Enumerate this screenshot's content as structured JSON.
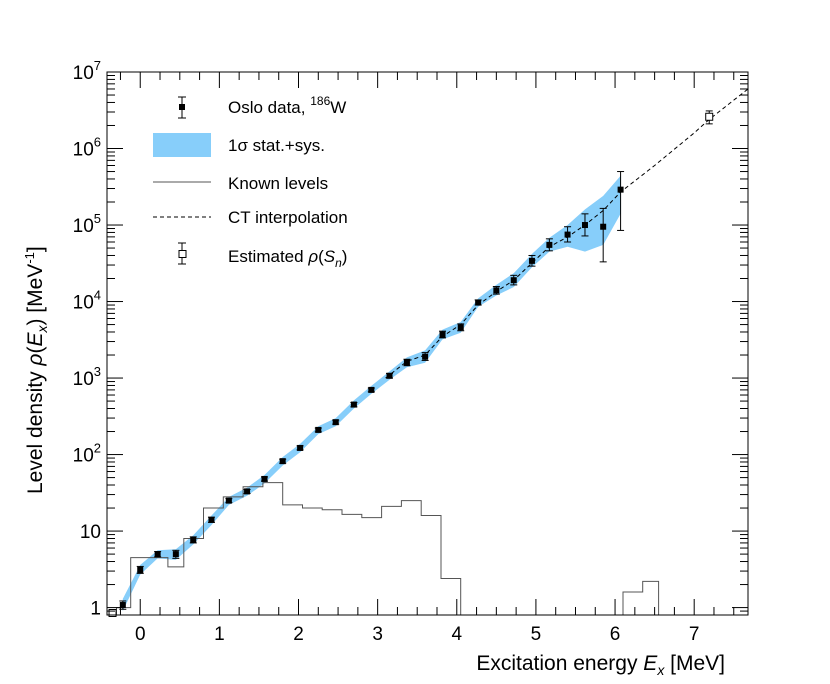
{
  "chart_data": {
    "type": "scatter",
    "xlabel": "Excitation energy E_x [MeV]",
    "xlabel_parts": {
      "pre": "Excitation energy ",
      "var": "E",
      "sub": "x",
      "post": " [MeV]"
    },
    "ylabel_parts": {
      "pre": "Level density ",
      "rho": "ρ",
      "open": "(",
      "var": "E",
      "sub": "x",
      "close": ")",
      "unit": " [MeV",
      "unit_sup": "-1",
      "unit_close": "]"
    },
    "xlim": [
      -0.42,
      7.68
    ],
    "ylim": [
      0.8,
      10000000
    ],
    "yscale": "log",
    "x_ticks": [
      "0",
      "1",
      "2",
      "3",
      "4",
      "5",
      "6",
      "7"
    ],
    "y_ticks": [
      {
        "label": "1",
        "value": 1
      },
      {
        "label": "10",
        "value": 10
      },
      {
        "label": "10",
        "sup": "2",
        "value": 100
      },
      {
        "label": "10",
        "sup": "3",
        "value": 1000
      },
      {
        "label": "10",
        "sup": "4",
        "value": 10000
      },
      {
        "label": "10",
        "sup": "5",
        "value": 100000
      },
      {
        "label": "10",
        "sup": "6",
        "value": 1000000
      },
      {
        "label": "10",
        "sup": "7",
        "value": 10000000
      }
    ],
    "legend": {
      "position": "top-left",
      "entries": [
        {
          "key": "oslo",
          "label": "Oslo data, ",
          "sup": "186",
          "tail": "W"
        },
        {
          "key": "band",
          "label": "1σ stat.+sys."
        },
        {
          "key": "known",
          "label": "Known levels"
        },
        {
          "key": "ct",
          "label": "CT interpolation"
        },
        {
          "key": "sn",
          "label": "Estimated ",
          "rho": "ρ",
          "open": "(",
          "var": "S",
          "sub": "n",
          "close": ")"
        }
      ]
    },
    "colors": {
      "band": "#87cefa",
      "markers": "#000000",
      "known_levels": "#555555",
      "interp": "#000000"
    },
    "series": [
      {
        "name": "Oslo data, 186W",
        "points": [
          {
            "x": -0.22,
            "y": 1.08,
            "lo": 0.95,
            "hi": 1.22
          },
          {
            "x": 0.0,
            "y": 3.1,
            "lo": 2.8,
            "hi": 3.45
          },
          {
            "x": 0.22,
            "y": 5.0,
            "lo": 4.6,
            "hi": 5.4
          },
          {
            "x": 0.45,
            "y": 5.0,
            "lo": 4.4,
            "hi": 5.6
          },
          {
            "x": 0.67,
            "y": 7.7,
            "lo": 7.0,
            "hi": 8.4
          },
          {
            "x": 0.9,
            "y": 14.0,
            "lo": 13.0,
            "hi": 15.2
          },
          {
            "x": 1.12,
            "y": 25.0,
            "lo": 23.5,
            "hi": 26.5
          },
          {
            "x": 1.35,
            "y": 33.0,
            "lo": 31.0,
            "hi": 35.0
          },
          {
            "x": 1.57,
            "y": 48.0,
            "lo": 45.0,
            "hi": 51.0
          },
          {
            "x": 1.8,
            "y": 82.0,
            "lo": 77.0,
            "hi": 87.0
          },
          {
            "x": 2.02,
            "y": 122.0,
            "lo": 115.0,
            "hi": 130.0
          },
          {
            "x": 2.25,
            "y": 210.0,
            "lo": 198.0,
            "hi": 222.0
          },
          {
            "x": 2.47,
            "y": 265.0,
            "lo": 250.0,
            "hi": 282.0
          },
          {
            "x": 2.7,
            "y": 450.0,
            "lo": 420.0,
            "hi": 480.0
          },
          {
            "x": 2.92,
            "y": 700.0,
            "lo": 660.0,
            "hi": 740.0
          },
          {
            "x": 3.15,
            "y": 1070.0,
            "lo": 1000.0,
            "hi": 1150.0
          },
          {
            "x": 3.37,
            "y": 1600.0,
            "lo": 1450.0,
            "hi": 1760.0
          },
          {
            "x": 3.6,
            "y": 1900.0,
            "lo": 1700.0,
            "hi": 2150.0
          },
          {
            "x": 3.82,
            "y": 3700.0,
            "lo": 3350.0,
            "hi": 4100.0
          },
          {
            "x": 4.05,
            "y": 4600.0,
            "lo": 4150.0,
            "hi": 5100.0
          },
          {
            "x": 4.27,
            "y": 9700.0,
            "lo": 9000.0,
            "hi": 10500.0
          },
          {
            "x": 4.5,
            "y": 14000.0,
            "lo": 12500.0,
            "hi": 15700.0
          },
          {
            "x": 4.72,
            "y": 19000.0,
            "lo": 16500.0,
            "hi": 22000.0
          },
          {
            "x": 4.95,
            "y": 34000.0,
            "lo": 29000.0,
            "hi": 40000.0
          },
          {
            "x": 5.17,
            "y": 55000.0,
            "lo": 46000.0,
            "hi": 66000.0
          },
          {
            "x": 5.4,
            "y": 75000.0,
            "lo": 60000.0,
            "hi": 95000.0
          },
          {
            "x": 5.62,
            "y": 100000.0,
            "lo": 72000.0,
            "hi": 140000.0
          },
          {
            "x": 5.85,
            "y": 95000.0,
            "lo": 33000.0,
            "hi": 165000.0
          },
          {
            "x": 6.07,
            "y": 290000.0,
            "lo": 85000.0,
            "hi": 500000.0
          }
        ]
      },
      {
        "name": "Estimated rho(Sn)",
        "points": [
          {
            "x": 7.19,
            "y": 2600000.0,
            "lo": 2100000.0,
            "hi": 3100000.0
          },
          {
            "x": -0.35,
            "y": 0.85,
            "lo": 0.8,
            "hi": 0.9
          }
        ]
      }
    ],
    "band": [
      {
        "x": -0.22,
        "lo": 0.9,
        "hi": 1.3
      },
      {
        "x": 0.0,
        "lo": 2.7,
        "hi": 3.6
      },
      {
        "x": 0.22,
        "lo": 4.4,
        "hi": 5.6
      },
      {
        "x": 0.45,
        "lo": 4.2,
        "hi": 5.8
      },
      {
        "x": 0.67,
        "lo": 6.7,
        "hi": 8.8
      },
      {
        "x": 0.9,
        "lo": 12.0,
        "hi": 16.0
      },
      {
        "x": 1.12,
        "lo": 22.0,
        "hi": 28.0
      },
      {
        "x": 1.35,
        "lo": 29.0,
        "hi": 37.0
      },
      {
        "x": 1.57,
        "lo": 42.0,
        "hi": 54.0
      },
      {
        "x": 1.8,
        "lo": 72.0,
        "hi": 93.0
      },
      {
        "x": 2.02,
        "lo": 107.0,
        "hi": 138.0
      },
      {
        "x": 2.25,
        "lo": 185.0,
        "hi": 235.0
      },
      {
        "x": 2.47,
        "lo": 235.0,
        "hi": 300.0
      },
      {
        "x": 2.7,
        "lo": 400.0,
        "hi": 510.0
      },
      {
        "x": 2.92,
        "lo": 620.0,
        "hi": 790.0
      },
      {
        "x": 3.15,
        "lo": 950.0,
        "hi": 1220.0
      },
      {
        "x": 3.37,
        "lo": 1380.0,
        "hi": 1860.0
      },
      {
        "x": 3.6,
        "lo": 1580.0,
        "hi": 2300.0
      },
      {
        "x": 3.82,
        "lo": 3200.0,
        "hi": 4300.0
      },
      {
        "x": 4.05,
        "lo": 3900.0,
        "hi": 5400.0
      },
      {
        "x": 4.27,
        "lo": 8500.0,
        "hi": 11000.0
      },
      {
        "x": 4.5,
        "lo": 12000.0,
        "hi": 16500.0
      },
      {
        "x": 4.72,
        "lo": 15500.0,
        "hi": 23500.0
      },
      {
        "x": 4.95,
        "lo": 28000.0,
        "hi": 42000.0
      },
      {
        "x": 5.17,
        "lo": 45000.0,
        "hi": 68000.0
      },
      {
        "x": 5.4,
        "lo": 52000.0,
        "hi": 100000.0
      },
      {
        "x": 5.62,
        "lo": 45000.0,
        "hi": 160000.0
      },
      {
        "x": 5.85,
        "lo": 55000.0,
        "hi": 240000.0
      },
      {
        "x": 6.07,
        "lo": 140000.0,
        "hi": 440000.0
      }
    ],
    "ct_interpolation": [
      {
        "x": 3.1,
        "y": 1000.0
      },
      {
        "x": 3.37,
        "y": 1650.0
      },
      {
        "x": 3.6,
        "y": 2000.0
      },
      {
        "x": 3.82,
        "y": 3500.0
      },
      {
        "x": 4.05,
        "y": 5000.0
      },
      {
        "x": 4.27,
        "y": 9000.0
      },
      {
        "x": 4.5,
        "y": 13500.0
      },
      {
        "x": 4.72,
        "y": 19000.0
      },
      {
        "x": 4.95,
        "y": 32000.0
      },
      {
        "x": 5.17,
        "y": 52000.0
      },
      {
        "x": 5.4,
        "y": 70000.0
      },
      {
        "x": 5.62,
        "y": 100000.0
      },
      {
        "x": 5.85,
        "y": 155000.0
      },
      {
        "x": 6.07,
        "y": 270000.0
      },
      {
        "x": 6.5,
        "y": 600000.0
      },
      {
        "x": 7.0,
        "y": 1600000.0
      },
      {
        "x": 7.19,
        "y": 2400000.0
      },
      {
        "x": 7.68,
        "y": 6000000.0
      }
    ],
    "known_levels": [
      {
        "x0": -0.42,
        "x1": -0.3,
        "y": 0.8
      },
      {
        "x0": -0.3,
        "x1": -0.12,
        "y": 1.0
      },
      {
        "x0": -0.12,
        "x1": 0.1,
        "y": 4.5
      },
      {
        "x0": 0.1,
        "x1": 0.35,
        "y": 4.5
      },
      {
        "x0": 0.35,
        "x1": 0.55,
        "y": 3.4
      },
      {
        "x0": 0.55,
        "x1": 0.8,
        "y": 8.0
      },
      {
        "x0": 0.8,
        "x1": 1.05,
        "y": 20.0
      },
      {
        "x0": 1.05,
        "x1": 1.3,
        "y": 28.0
      },
      {
        "x0": 1.3,
        "x1": 1.55,
        "y": 38.0
      },
      {
        "x0": 1.55,
        "x1": 1.8,
        "y": 43.0
      },
      {
        "x0": 1.8,
        "x1": 2.05,
        "y": 22.0
      },
      {
        "x0": 2.05,
        "x1": 2.3,
        "y": 20.0
      },
      {
        "x0": 2.3,
        "x1": 2.55,
        "y": 19.0
      },
      {
        "x0": 2.55,
        "x1": 2.8,
        "y": 16.5
      },
      {
        "x0": 2.8,
        "x1": 3.05,
        "y": 15.0
      },
      {
        "x0": 3.05,
        "x1": 3.3,
        "y": 21.0
      },
      {
        "x0": 3.3,
        "x1": 3.55,
        "y": 25.0
      },
      {
        "x0": 3.55,
        "x1": 3.8,
        "y": 16.0
      },
      {
        "x0": 3.8,
        "x1": 4.05,
        "y": 2.4
      },
      {
        "x0": 6.1,
        "x1": 6.35,
        "y": 1.6
      },
      {
        "x0": 6.35,
        "x1": 6.55,
        "y": 2.2
      }
    ]
  }
}
